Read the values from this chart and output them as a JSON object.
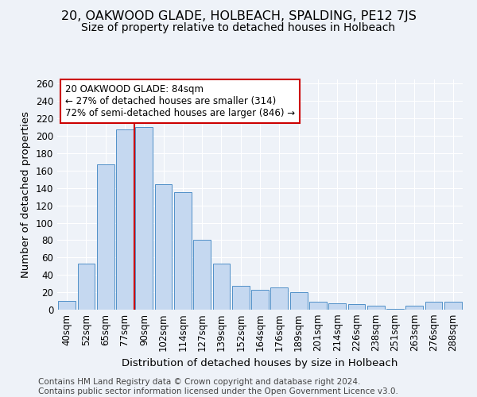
{
  "title": "20, OAKWOOD GLADE, HOLBEACH, SPALDING, PE12 7JS",
  "subtitle": "Size of property relative to detached houses in Holbeach",
  "xlabel": "Distribution of detached houses by size in Holbeach",
  "ylabel": "Number of detached properties",
  "categories": [
    "40sqm",
    "52sqm",
    "65sqm",
    "77sqm",
    "90sqm",
    "102sqm",
    "114sqm",
    "127sqm",
    "139sqm",
    "152sqm",
    "164sqm",
    "176sqm",
    "189sqm",
    "201sqm",
    "214sqm",
    "226sqm",
    "238sqm",
    "251sqm",
    "263sqm",
    "276sqm",
    "288sqm"
  ],
  "values": [
    10,
    53,
    167,
    207,
    210,
    144,
    135,
    80,
    53,
    27,
    23,
    26,
    20,
    9,
    7,
    6,
    5,
    1,
    5,
    9,
    9
  ],
  "bar_color": "#c5d8f0",
  "bar_edge_color": "#5090c8",
  "vline_x": 3.5,
  "annotation_text": "20 OAKWOOD GLADE: 84sqm\n← 27% of detached houses are smaller (314)\n72% of semi-detached houses are larger (846) →",
  "annotation_box_color": "#ffffff",
  "annotation_box_edge": "#cc0000",
  "vline_color": "#cc0000",
  "ylim": [
    0,
    265
  ],
  "yticks": [
    0,
    20,
    40,
    60,
    80,
    100,
    120,
    140,
    160,
    180,
    200,
    220,
    240,
    260
  ],
  "footer_line1": "Contains HM Land Registry data © Crown copyright and database right 2024.",
  "footer_line2": "Contains public sector information licensed under the Open Government Licence v3.0.",
  "background_color": "#eef2f8",
  "grid_color": "#ffffff",
  "title_fontsize": 11.5,
  "subtitle_fontsize": 10,
  "label_fontsize": 9.5,
  "tick_fontsize": 8.5,
  "annotation_fontsize": 8.5,
  "footer_fontsize": 7.5
}
